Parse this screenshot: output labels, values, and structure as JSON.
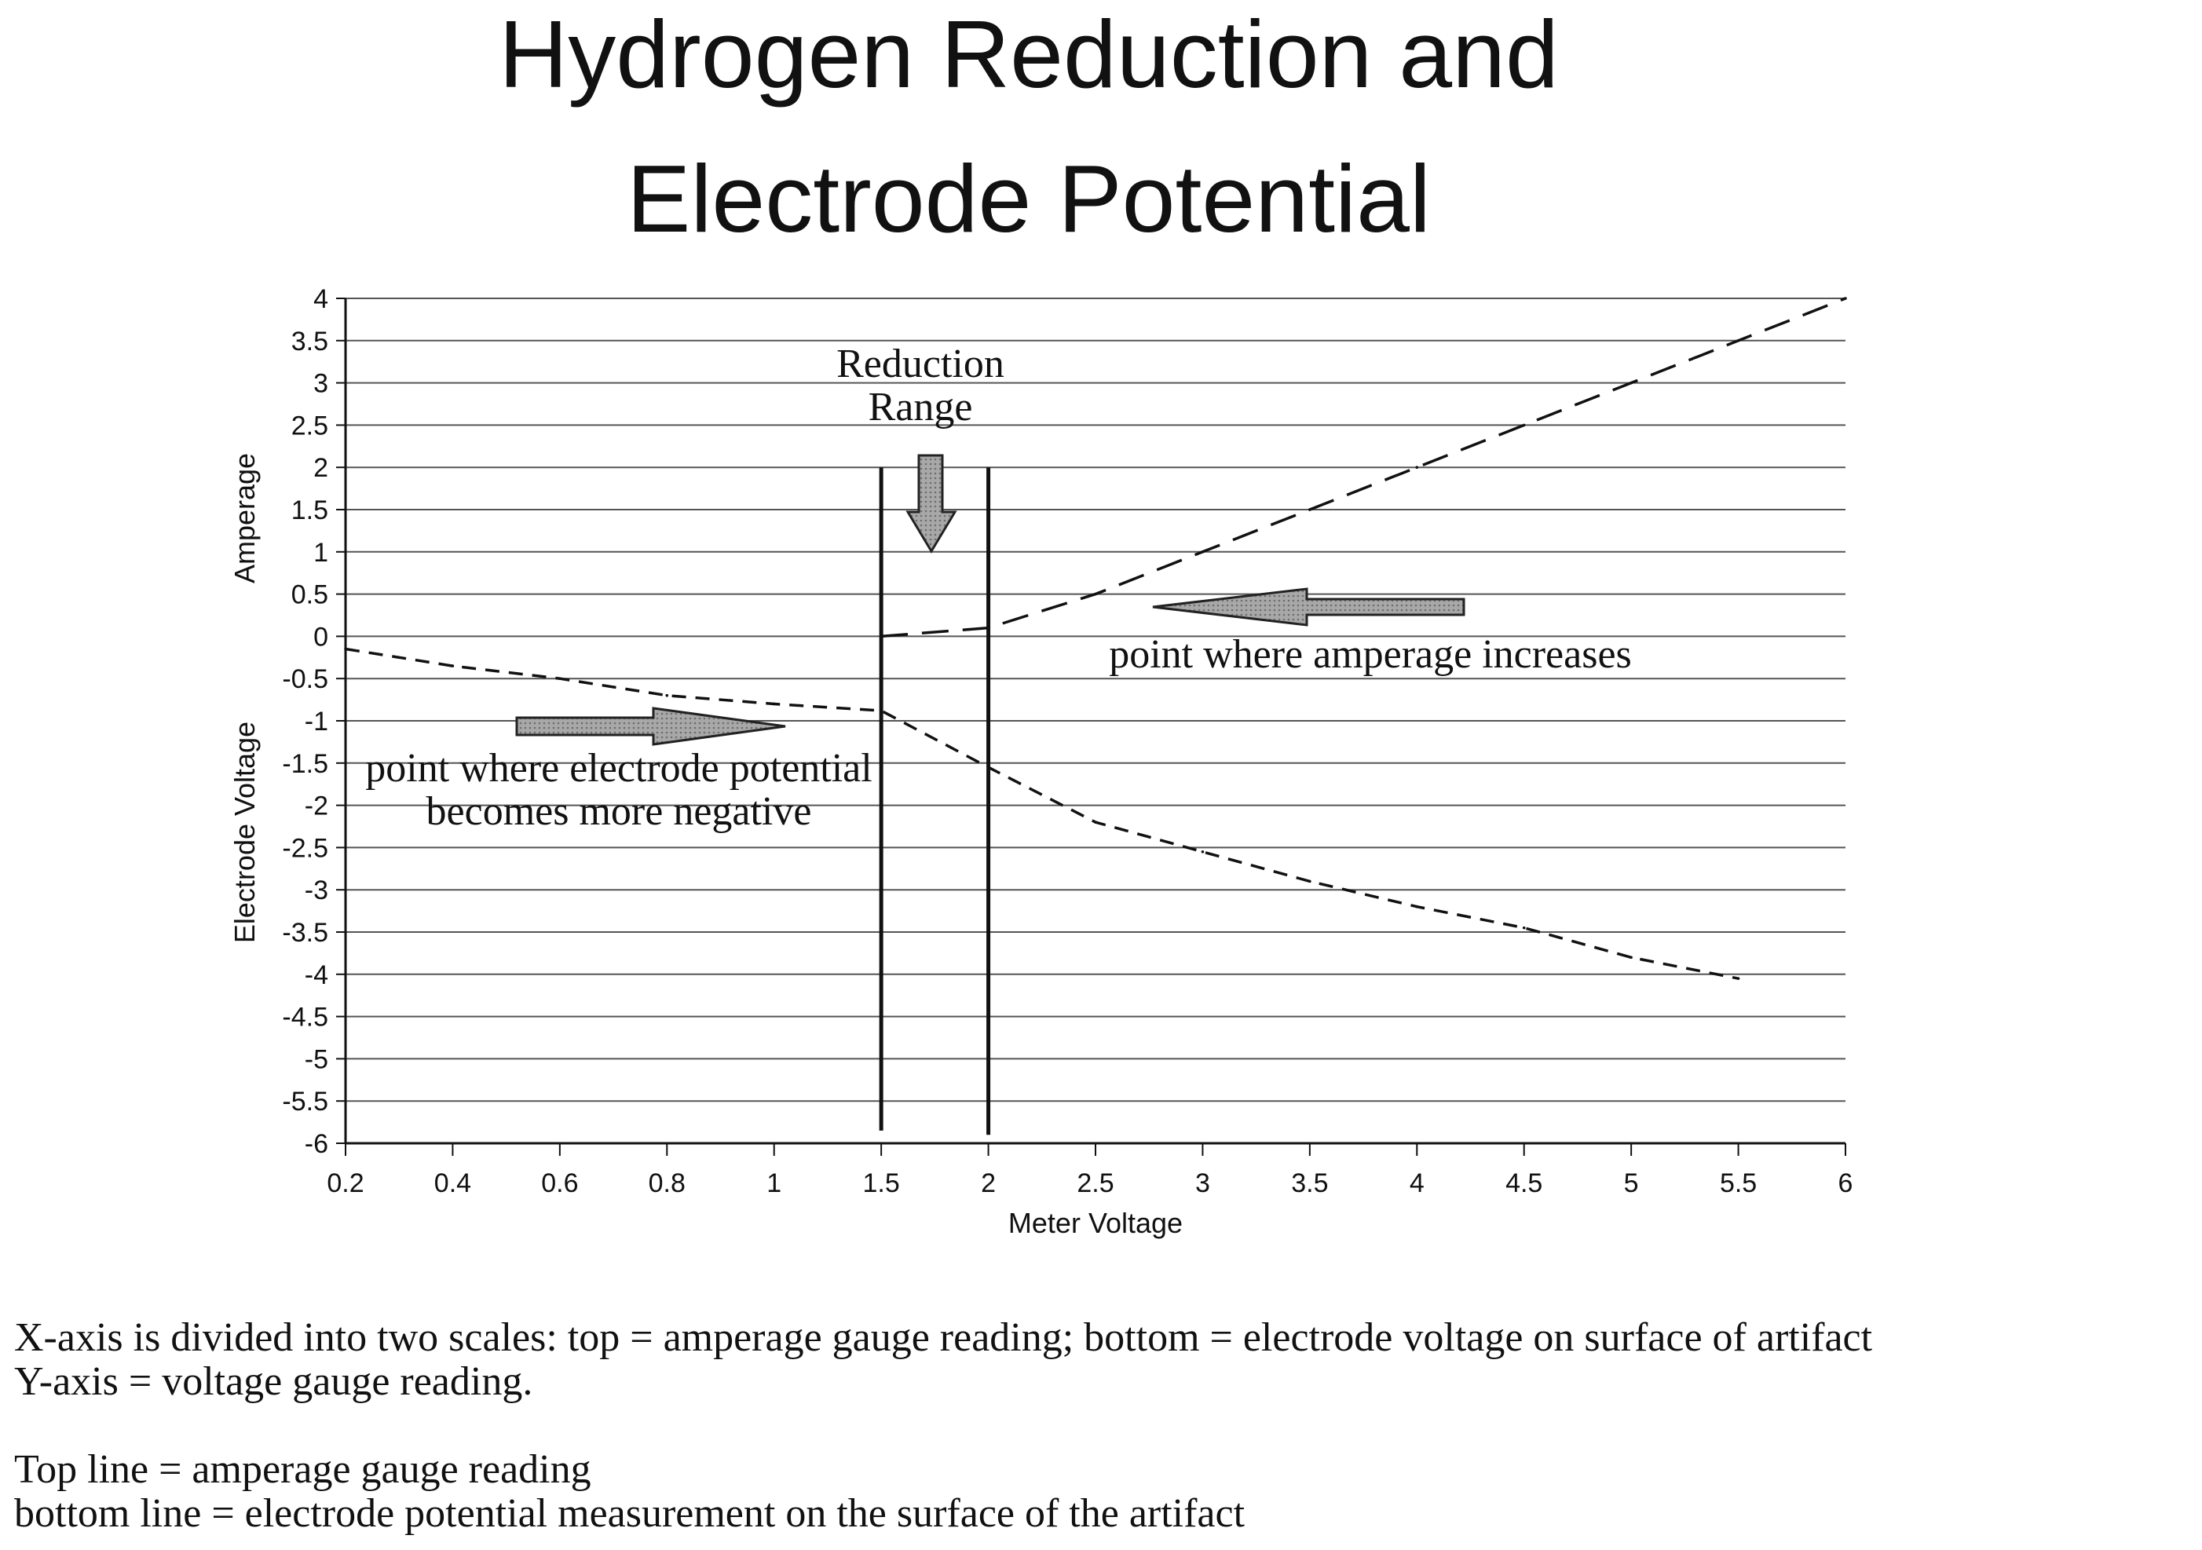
{
  "title": {
    "line1": "Hydrogen Reduction and",
    "line2": "Electrode Potential"
  },
  "captions": [
    "X-axis is divided into two scales: top = amperage gauge reading; bottom = electrode voltage on surface of artifact",
    "Y-axis = voltage gauge reading.",
    "Top line = amperage gauge reading",
    "bottom line = electrode potential measurement on the surface of the artifact"
  ],
  "chart_data": {
    "type": "line",
    "title": "Hydrogen Reduction and Electrode Potential",
    "xlabel": "Meter Voltage",
    "ylabel_top": "Amperage",
    "ylabel_bottom": "Electrode Voltage",
    "x_ticks": [
      "0.2",
      "0.4",
      "0.6",
      "0.8",
      "1",
      "1.5",
      "2",
      "2.5",
      "3",
      "3.5",
      "4",
      "4.5",
      "5",
      "5.5",
      "6"
    ],
    "y_ticks": [
      "4",
      "3.5",
      "3",
      "2.5",
      "2",
      "1.5",
      "1",
      "0.5",
      "0",
      "-0.5",
      "-1",
      "-1.5",
      "-2",
      "-2.5",
      "-3",
      "-3.5",
      "-4",
      "-4.5",
      "-5",
      "-5.5",
      "-6"
    ],
    "ylim": [
      -6,
      4
    ],
    "grid": "horizontal",
    "series": [
      {
        "x": [
          "1.5",
          "2",
          "2.5",
          "3",
          "3.5",
          "4",
          "4.5",
          "5",
          "5.5",
          "6"
        ],
        "values": [
          0,
          0.1,
          0.5,
          1.0,
          1.5,
          2.0,
          2.5,
          3.0,
          3.5,
          4.0
        ],
        "style": "long-dash"
      },
      {
        "x": [
          "0.2",
          "0.4",
          "0.6",
          "0.8",
          "1",
          "1.5",
          "2",
          "2.5",
          "3",
          "3.5",
          "4",
          "4.5",
          "5",
          "5.5"
        ],
        "values": [
          -0.15,
          -0.35,
          -0.5,
          -0.7,
          -0.8,
          -0.88,
          -1.55,
          -2.2,
          -2.55,
          -2.9,
          -3.2,
          -3.45,
          -3.8,
          -4.05
        ],
        "style": "short-dash"
      }
    ],
    "reference_lines": [
      {
        "x": "1.5",
        "y_from": 2,
        "y_to": -5.85
      },
      {
        "x": "2",
        "y_from": 2,
        "y_to": -5.9
      }
    ],
    "annotations": {
      "reduction_range_line1": "Reduction",
      "reduction_range_line2": "Range",
      "amperage_note": "point where amperage increases",
      "electrode_note_line1": "point where electrode potential",
      "electrode_note_line2": "becomes more negative"
    }
  },
  "colors": {
    "ink": "#111111",
    "grid": "#555555",
    "arrow_fill": "#a8a8a8"
  }
}
